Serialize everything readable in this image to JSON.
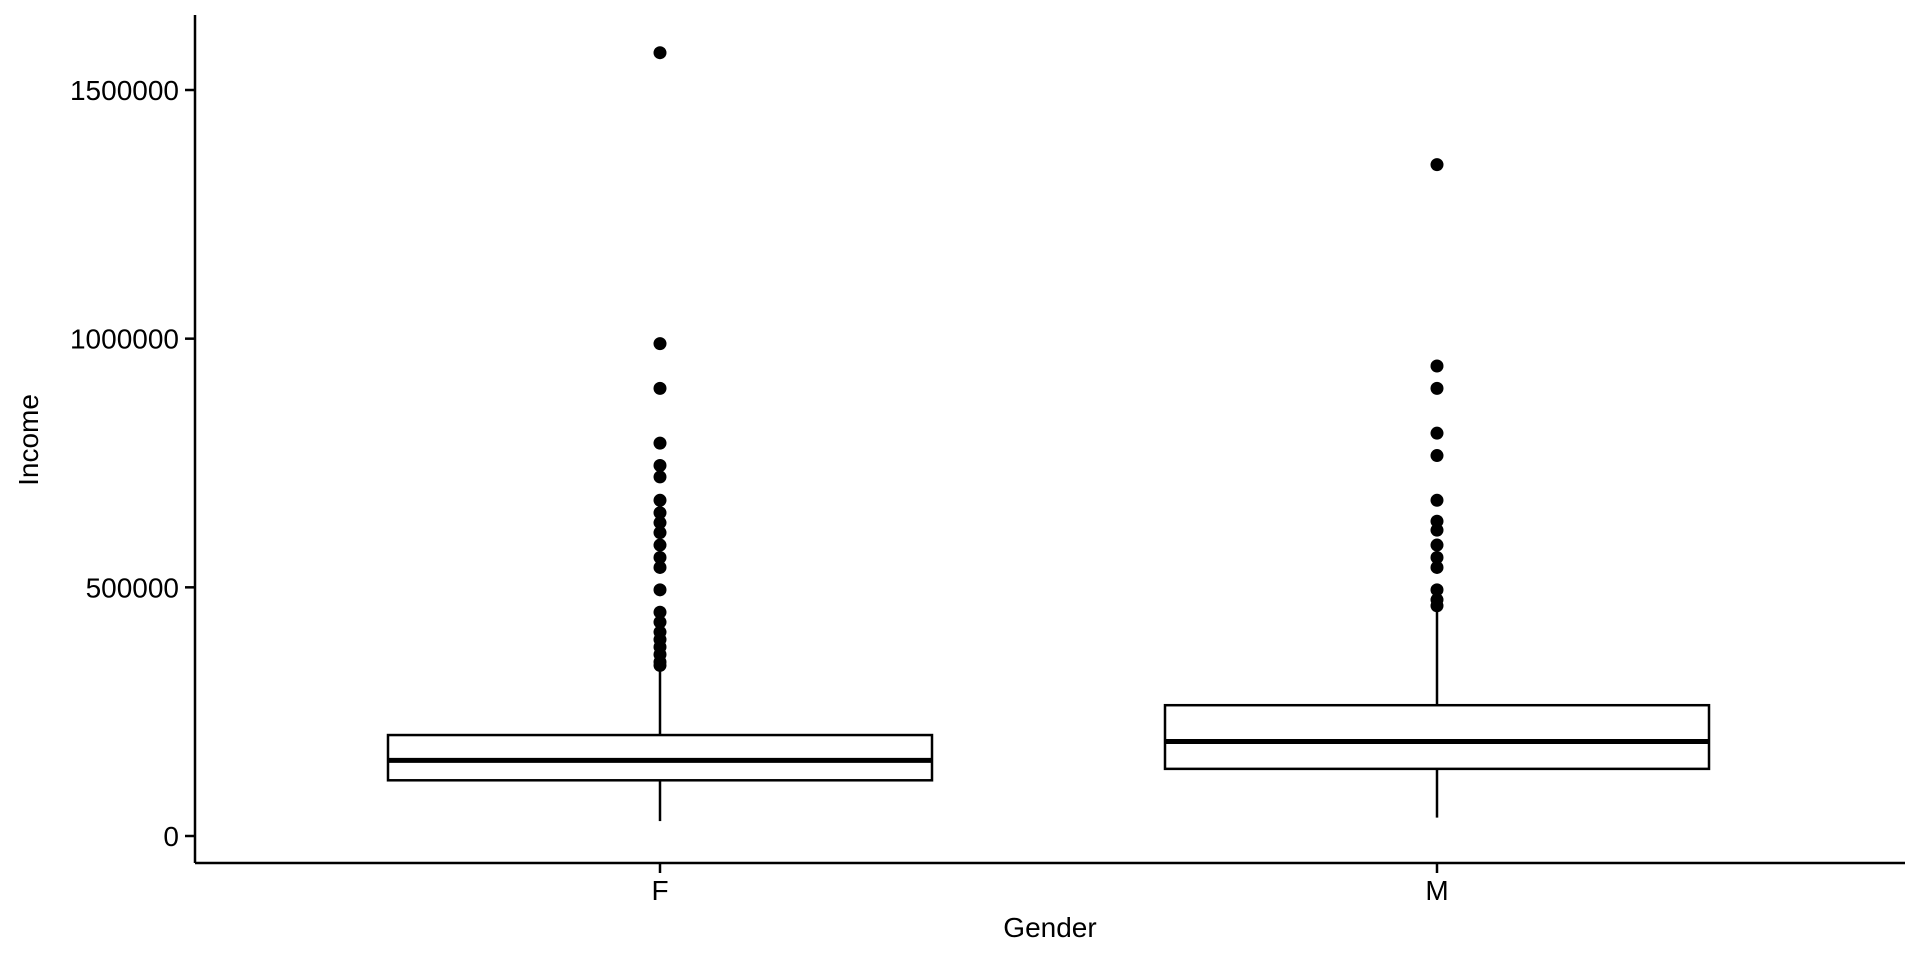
{
  "chart_data": {
    "type": "box",
    "title": "",
    "xlabel": "Gender",
    "ylabel": "Income",
    "ylim": [
      -50000,
      1650000
    ],
    "yticks": [
      0,
      500000,
      1000000,
      1500000
    ],
    "ytick_labels": [
      "0",
      "500000",
      "1000000",
      "1500000"
    ],
    "grid": false,
    "categories": [
      "F",
      "M"
    ],
    "boxes": [
      {
        "category": "F",
        "whisker_low": 30000,
        "q1": 112000,
        "median": 152000,
        "q3": 203000,
        "whisker_high": 340000,
        "outliers": [
          1575000,
          990000,
          900000,
          790000,
          745000,
          722000,
          675000,
          650000,
          630000,
          610000,
          585000,
          560000,
          540000,
          495000,
          450000,
          430000,
          410000,
          395000,
          380000,
          365000,
          350000,
          343000
        ]
      },
      {
        "category": "M",
        "whisker_low": 37000,
        "q1": 135000,
        "median": 190000,
        "q3": 263000,
        "whisker_high": 460000,
        "outliers": [
          1350000,
          945000,
          900000,
          810000,
          765000,
          675000,
          633000,
          615000,
          585000,
          560000,
          540000,
          495000,
          475000,
          463000
        ]
      }
    ]
  }
}
